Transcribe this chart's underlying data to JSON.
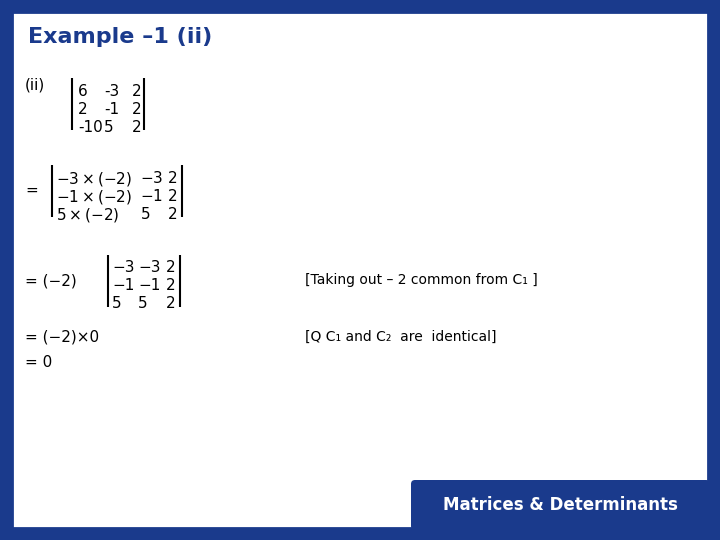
{
  "title": "Example –1 (ii)",
  "bg_outer": "#1a3a8c",
  "bg_inner": "#ffffff",
  "title_color": "#1a3a8c",
  "footer_bg": "#1a3a8c",
  "footer_text": "Matrices & Determinants",
  "footer_text_color": "#ffffff",
  "math_color": "#000000",
  "label_color": "#000000",
  "figw": 7.2,
  "figh": 5.4,
  "dpi": 100
}
